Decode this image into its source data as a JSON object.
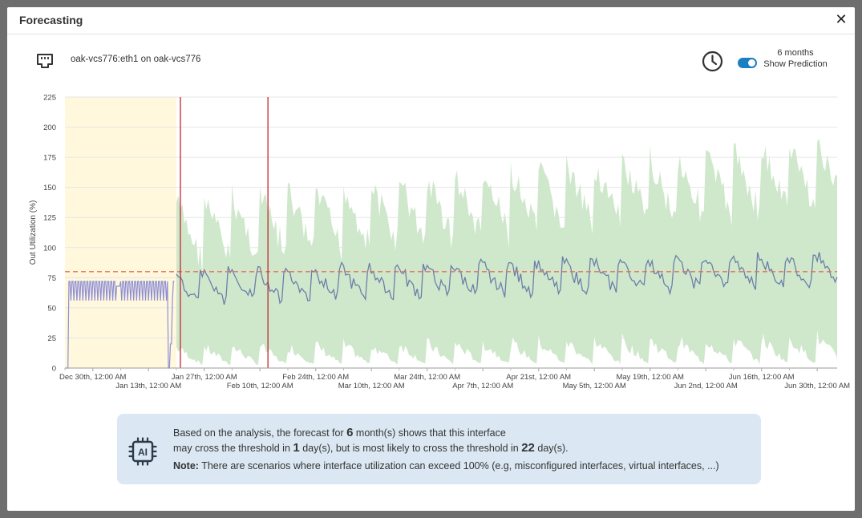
{
  "dialog": {
    "title": "Forecasting",
    "close_icon": "close-icon"
  },
  "interface": {
    "icon": "ethernet-port-icon",
    "label": "oak-vcs776:eth1 on oak-vcs776"
  },
  "prediction": {
    "icon": "clock-icon",
    "period": "6 months",
    "toggle_label": "Show Prediction",
    "enabled": true
  },
  "ai_box": {
    "icon": "ai-chip-icon",
    "line1_pre": "Based on the analysis, the forecast for ",
    "months": "6",
    "line1_post": " month(s) shows that this interface",
    "line2_pre": "may cross the threshold in ",
    "min_days": "1",
    "line2_mid": " day(s), but is most likely to cross the threshold in ",
    "likely_days": "22",
    "line2_post": " day(s).",
    "note_label": "Note:",
    "note_text": " There are scenarios where interface utilization can exceed 100% (e.g, misconfigured interfaces, virtual interfaces, ...)"
  },
  "colors": {
    "history_band": "#fff8dc",
    "prediction_band": "#cfe8cc",
    "series_line": "#6b7fa8",
    "history_line": "#8f8fd6",
    "threshold": "#e8705a",
    "marker": "#c0282d",
    "toggle": "#1c7fc4"
  },
  "chart_data": {
    "type": "line",
    "ylabel": "Out Utilization (%)",
    "ylim": [
      0,
      225
    ],
    "yticks": [
      "0",
      "25",
      "50",
      "75",
      "100",
      "125",
      "150",
      "175",
      "200",
      "225"
    ],
    "xticks": [
      "Dec 30th, 12:00 AM",
      "Jan 13th, 12:00 AM",
      "Jan 27th, 12:00 AM",
      "Feb 10th, 12:00 AM",
      "Feb 24th, 12:00 AM",
      "Mar 10th, 12:00 AM",
      "Mar 24th, 12:00 AM",
      "Apr 7th, 12:00 AM",
      "Apr 21st, 12:00 AM",
      "May 5th, 12:00 AM",
      "May 19th, 12:00 AM",
      "Jun 2nd, 12:00 AM",
      "Jun 16th, 12:00 AM",
      "Jun 30th, 12:00 AM"
    ],
    "threshold": 80,
    "grid": true,
    "history_range": [
      "Dec 23rd, 12:00 AM",
      "Jan 20th, 12:00 AM"
    ],
    "prediction_markers": [
      "Jan 21st, 12:00 AM",
      "Feb 12th, 12:00 AM"
    ],
    "series": [
      {
        "role": "history",
        "level_approx": 72,
        "dips_to": 56,
        "note_drop_to": 0
      },
      {
        "role": "prediction",
        "weekly_pattern": [
          72,
          66,
          60,
          56,
          52,
          48,
          74
        ],
        "trend_start": 70,
        "trend_end": 85,
        "band_upper_start": 150,
        "band_upper_end": 200,
        "band_lower_start": 20,
        "band_lower_end": 30
      }
    ]
  }
}
